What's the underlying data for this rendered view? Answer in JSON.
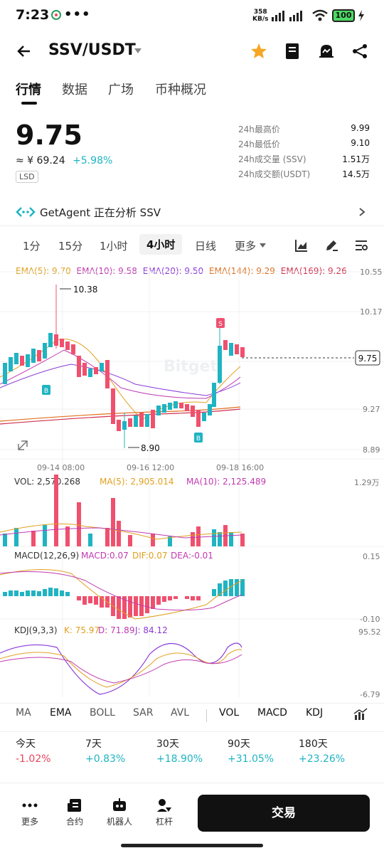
{
  "status": {
    "time": "7:23",
    "dots": "•••",
    "net_top": "358",
    "net_bottom": "KB/s",
    "battery": "100"
  },
  "header": {
    "pair": "SSV/USDT"
  },
  "tabs": [
    "行情",
    "数据",
    "广场",
    "币种概况"
  ],
  "price": {
    "last": "9.75",
    "fiat": "≈ ¥ 69.24",
    "change": "+5.98%",
    "tag": "LSD"
  },
  "stats": [
    {
      "k": "24h最高价",
      "v": "9.99"
    },
    {
      "k": "24h最低价",
      "v": "9.10"
    },
    {
      "k": "24h成交量 (SSV)",
      "v": "1.51万"
    },
    {
      "k": "24h成交额(USDT)",
      "v": "14.5万"
    }
  ],
  "agent": {
    "text": "GetAgent 正在分析 SSV"
  },
  "intervals": [
    "1分",
    "15分",
    "1小时",
    "4小时",
    "日线",
    "更多"
  ],
  "ema": [
    {
      "t": "EMA(5): 9.70",
      "c": "#e0a020"
    },
    {
      "t": "EMA(10): 9.58",
      "c": "#c03ab0"
    },
    {
      "t": "EMA(20): 9.50",
      "c": "#8a3ad8"
    },
    {
      "t": "EMA(144): 9.29",
      "c": "#e07020"
    },
    {
      "t": "EMA(169): 9.26",
      "c": "#d03050"
    }
  ],
  "chart_data": {
    "type": "candlestick",
    "price_axis": [
      "10.55",
      "10.17",
      "9.27",
      "8.89"
    ],
    "last_price_label": "9.75",
    "high_marker": "10.38",
    "low_marker": "8.90",
    "time_labels": [
      "09-14 08:00",
      "09-16 12:00",
      "09-18 16:00"
    ],
    "volume": {
      "legend": [
        "VOL: 2,570.268",
        "MA(5): 2,905.014",
        "MA(10): 2,125.489"
      ],
      "axis_top": "1.29万"
    },
    "macd": {
      "legend": [
        "MACD(12,26,9)",
        "MACD:0.07",
        "DIF:0.07",
        "DEA:-0.01"
      ],
      "axis_top": "0.15",
      "axis_bottom": "-0.10"
    },
    "kdj": {
      "legend": [
        "KDJ(9,3,3)",
        "K: 75.97",
        "D: 71.89",
        "J: 84.12"
      ],
      "axis_top": "95.52",
      "axis_bottom": "-6.79"
    },
    "watermark": "Bitget"
  },
  "indicators": [
    "MA",
    "EMA",
    "BOLL",
    "SAR",
    "AVL",
    "VOL",
    "MACD",
    "KDJ"
  ],
  "performance": [
    {
      "label": "今天",
      "value": "-1.02%"
    },
    {
      "label": "7天",
      "value": "+0.83%"
    },
    {
      "label": "30天",
      "value": "+18.90%"
    },
    {
      "label": "90天",
      "value": "+31.05%"
    },
    {
      "label": "180天",
      "value": "+23.26%"
    }
  ],
  "bottom": {
    "items": [
      "更多",
      "合约",
      "机器人",
      "杠杆"
    ],
    "trade": "交易"
  }
}
